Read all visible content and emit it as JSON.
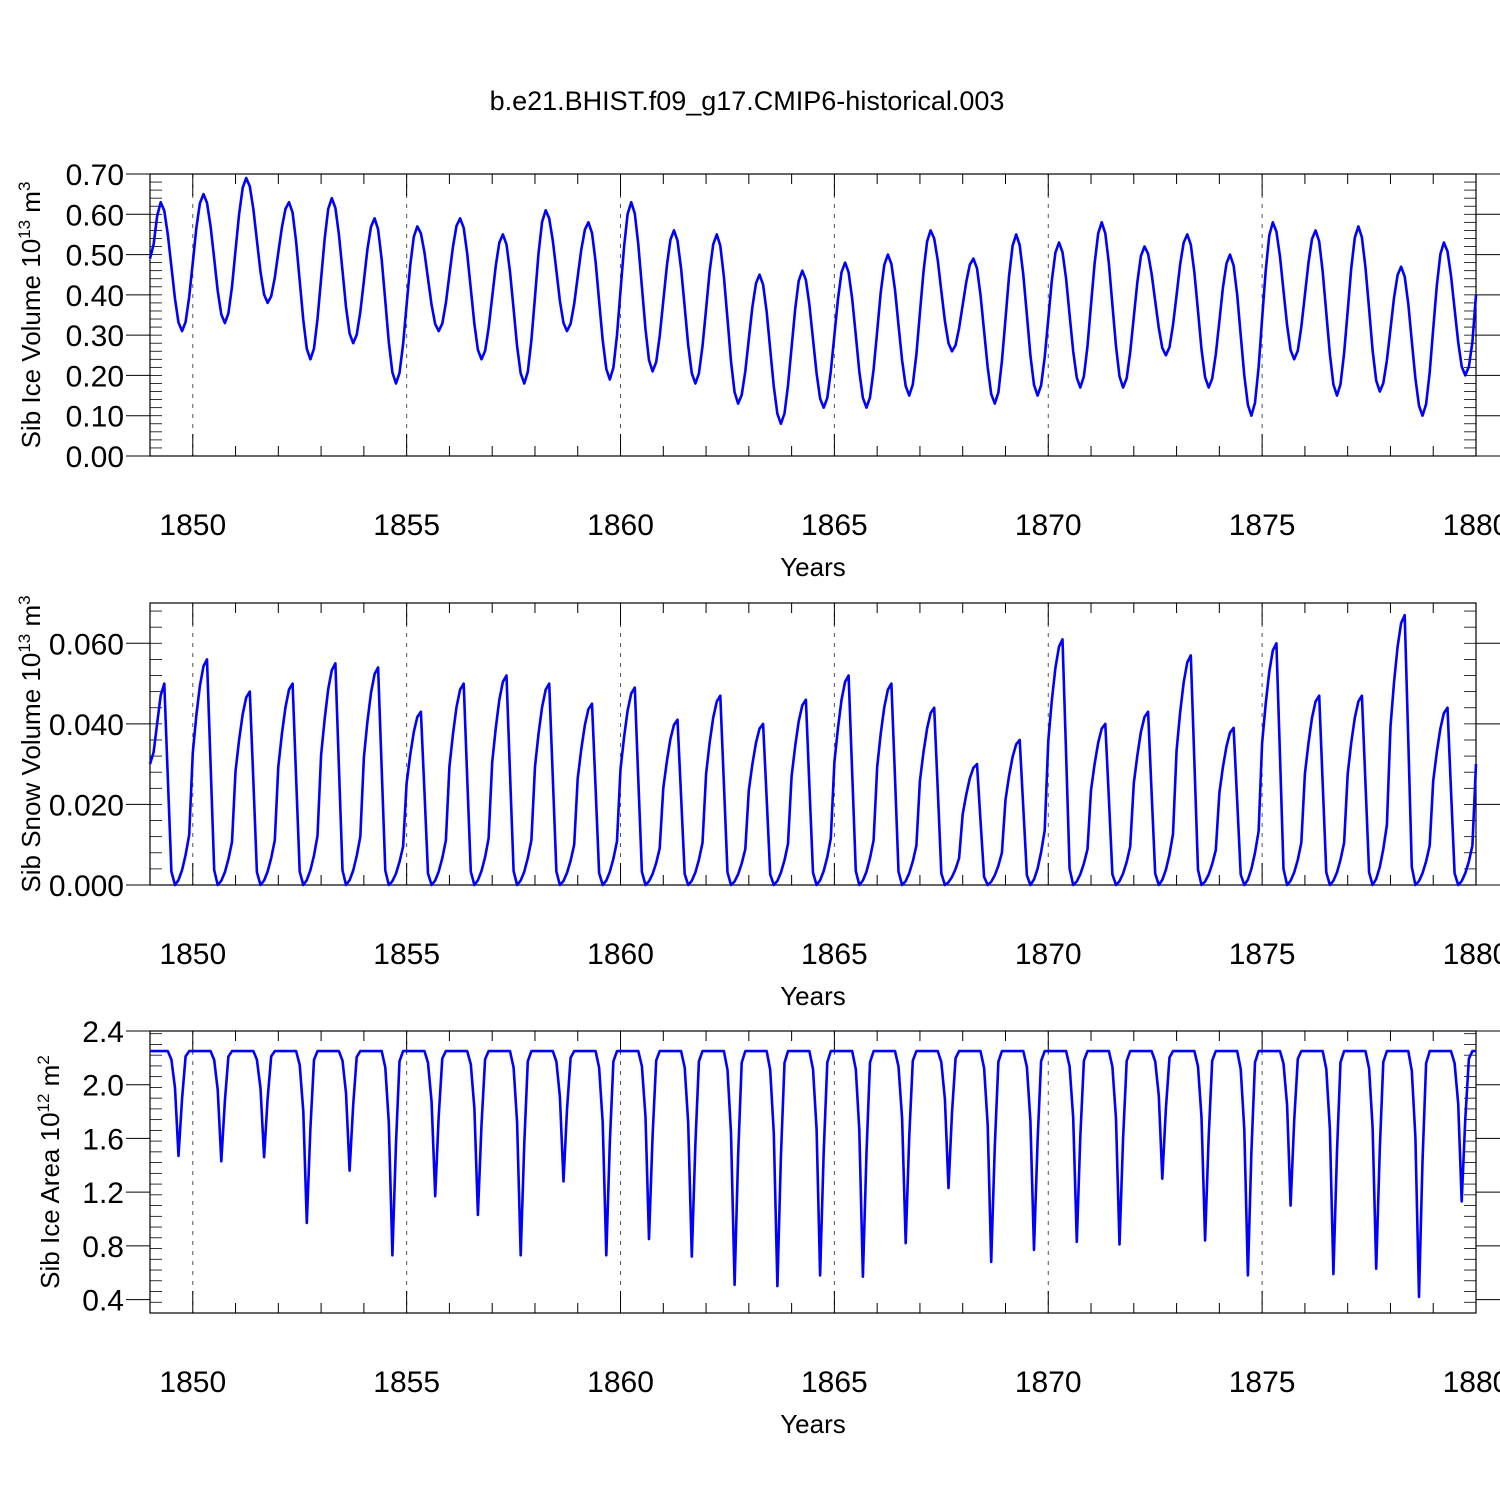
{
  "figure": {
    "title": "b.e21.BHIST.f09_g17.CMIP6-historical.003"
  },
  "chart_data": [
    {
      "type": "line",
      "id": "ice-volume",
      "title": "b.e21.BHIST.f09_g17.CMIP6-historical.003",
      "xlabel": "Years",
      "ylabel": "Sib Ice Volume 10",
      "ylabel_exp": "13",
      "ylabel_unit": " m",
      "ylabel_unit_exp": "3",
      "xlim": [
        1849,
        1880
      ],
      "ylim": [
        0.0,
        0.7
      ],
      "xticks": [
        1850,
        1855,
        1860,
        1865,
        1870,
        1875,
        1880
      ],
      "xtick_labels": [
        "1850",
        "1855",
        "1860",
        "1865",
        "1870",
        "1875",
        "1880"
      ],
      "yticks": [
        0.0,
        0.1,
        0.2,
        0.3,
        0.4,
        0.5,
        0.6,
        0.7
      ],
      "ytick_labels": [
        "0.00",
        "0.10",
        "0.20",
        "0.30",
        "0.40",
        "0.50",
        "0.60",
        "0.70"
      ],
      "series_color": "#0000ff",
      "peak_month": 3,
      "trough_month": 9,
      "start_value": 0.49,
      "end_value": 0.4,
      "annual_peaks": [
        0.63,
        0.65,
        0.69,
        0.63,
        0.64,
        0.59,
        0.57,
        0.59,
        0.55,
        0.61,
        0.58,
        0.63,
        0.56,
        0.55,
        0.45,
        0.46,
        0.48,
        0.5,
        0.56,
        0.49,
        0.55,
        0.53,
        0.58,
        0.52,
        0.55,
        0.5,
        0.58,
        0.56,
        0.57,
        0.47,
        0.53
      ],
      "annual_troughs": [
        0.31,
        0.33,
        0.38,
        0.24,
        0.28,
        0.18,
        0.31,
        0.24,
        0.18,
        0.31,
        0.19,
        0.21,
        0.18,
        0.13,
        0.08,
        0.12,
        0.12,
        0.15,
        0.26,
        0.13,
        0.15,
        0.17,
        0.17,
        0.25,
        0.17,
        0.1,
        0.24,
        0.15,
        0.16,
        0.1,
        0.2
      ]
    },
    {
      "type": "line",
      "id": "snow-volume",
      "xlabel": "Years",
      "ylabel": "Sib Snow Volume 10",
      "ylabel_exp": "13",
      "ylabel_unit": " m",
      "ylabel_unit_exp": "3",
      "xlim": [
        1849,
        1880
      ],
      "ylim": [
        0.0,
        0.07
      ],
      "xticks": [
        1850,
        1855,
        1860,
        1865,
        1870,
        1875,
        1880
      ],
      "xtick_labels": [
        "1850",
        "1855",
        "1860",
        "1865",
        "1870",
        "1875",
        "1880"
      ],
      "yticks": [
        0.0,
        0.02,
        0.04,
        0.06
      ],
      "ytick_labels": [
        "0.000",
        "0.020",
        "0.040",
        "0.060"
      ],
      "series_color": "#0000ff",
      "peak_month": 4,
      "trough_month": 7,
      "start_value": 0.03,
      "end_value": 0.03,
      "annual_peaks": [
        0.05,
        0.056,
        0.048,
        0.05,
        0.055,
        0.054,
        0.043,
        0.05,
        0.052,
        0.05,
        0.045,
        0.049,
        0.041,
        0.047,
        0.04,
        0.046,
        0.052,
        0.05,
        0.044,
        0.03,
        0.036,
        0.061,
        0.04,
        0.043,
        0.057,
        0.039,
        0.06,
        0.047,
        0.047,
        0.067,
        0.044
      ],
      "annual_troughs": [
        0.0,
        0.0,
        0.0,
        0.0,
        0.0,
        0.0,
        0.0,
        0.0,
        0.0,
        0.0,
        0.0,
        0.0,
        0.0,
        0.0,
        0.0,
        0.0,
        0.0,
        0.0,
        0.0,
        0.0,
        0.0,
        0.0,
        0.0,
        0.0,
        0.0,
        0.0,
        0.0,
        0.0,
        0.0,
        0.0,
        0.0
      ]
    },
    {
      "type": "line",
      "id": "ice-area",
      "xlabel": "Years",
      "ylabel": "Sib Ice Area 10",
      "ylabel_exp": "12",
      "ylabel_unit": " m",
      "ylabel_unit_exp": "2",
      "xlim": [
        1849,
        1880
      ],
      "ylim": [
        0.3,
        2.4
      ],
      "xticks": [
        1850,
        1855,
        1860,
        1865,
        1870,
        1875,
        1880
      ],
      "xtick_labels": [
        "1850",
        "1855",
        "1860",
        "1865",
        "1870",
        "1875",
        "1880"
      ],
      "yticks": [
        0.4,
        0.8,
        1.2,
        1.6,
        2.0,
        2.4
      ],
      "ytick_labels": [
        "0.4",
        "0.8",
        "1.2",
        "1.6",
        "2.0",
        "2.4"
      ],
      "series_color": "#0000ff",
      "plateau_value": 2.25,
      "trough_month": 8,
      "start_value": 2.25,
      "end_value": 2.25,
      "annual_troughs": [
        1.47,
        1.43,
        1.46,
        0.97,
        1.36,
        0.73,
        1.17,
        1.03,
        0.73,
        1.28,
        0.73,
        0.85,
        0.72,
        0.51,
        0.5,
        0.58,
        0.57,
        0.82,
        1.23,
        0.68,
        0.77,
        0.83,
        0.81,
        1.3,
        0.84,
        0.58,
        1.1,
        0.59,
        0.63,
        0.42,
        1.13
      ]
    }
  ]
}
